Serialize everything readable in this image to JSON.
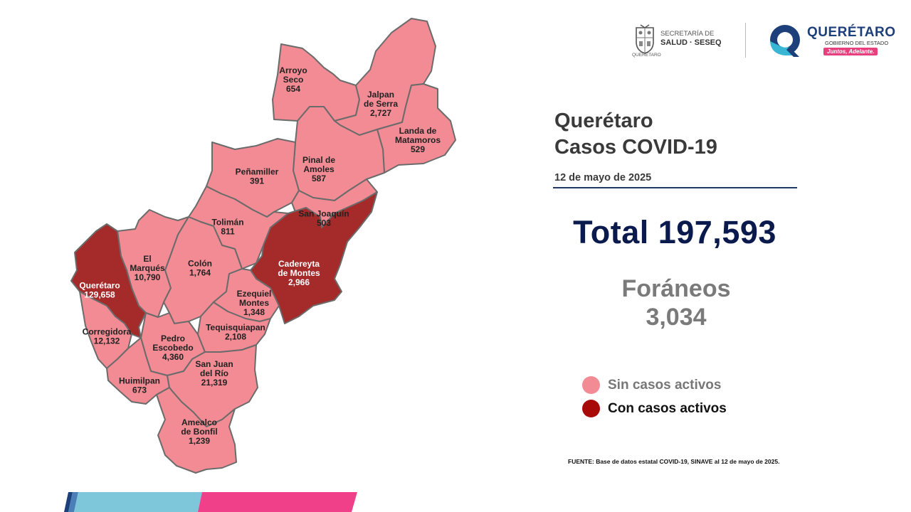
{
  "header": {
    "salud_line1": "SECRETARÍA DE",
    "salud_line2": "SALUD · SESEQ",
    "salud_sub": "QUERÉTARO",
    "state_name": "QUERÉTARO",
    "state_sub": "GOBIERNO DEL ESTADO",
    "slogan": "Juntos, Adelante."
  },
  "title": {
    "line1": "Querétaro",
    "line2": "Casos COVID-19",
    "date": "12 de mayo de 2025"
  },
  "totals": {
    "total_label": "Total 197,593",
    "foraneos_label": "Foráneos",
    "foraneos_value": "3,034"
  },
  "legend": [
    {
      "label": "Sin casos activos",
      "color": "#f28b93"
    },
    {
      "label": "Con casos activos",
      "color": "#a80a0a"
    }
  ],
  "colors": {
    "inactive": "#f28b93",
    "active": "#a52a2a",
    "border": "#6b6b6b"
  },
  "municipalities": [
    {
      "id": "arroyo-seco",
      "name_lines": [
        "Arroyo",
        "Seco"
      ],
      "cases": "654",
      "active": false
    },
    {
      "id": "jalpan-de-serra",
      "name_lines": [
        "Jalpan",
        "de Serra"
      ],
      "cases": "2,727",
      "active": false
    },
    {
      "id": "landa-de-matamoros",
      "name_lines": [
        "Landa de",
        "Matamoros"
      ],
      "cases": "529",
      "active": false
    },
    {
      "id": "pinal-de-amoles",
      "name_lines": [
        "Pinal de",
        "Amoles"
      ],
      "cases": "587",
      "active": false
    },
    {
      "id": "penamiller",
      "name_lines": [
        "Peñamiller"
      ],
      "cases": "391",
      "active": false
    },
    {
      "id": "san-joaquin",
      "name_lines": [
        "San Joaquín"
      ],
      "cases": "503",
      "active": false
    },
    {
      "id": "toliman",
      "name_lines": [
        "Tolimán"
      ],
      "cases": "811",
      "active": false
    },
    {
      "id": "cadereyta-de-montes",
      "name_lines": [
        "Cadereyta",
        "de Montes"
      ],
      "cases": "2,966",
      "active": true
    },
    {
      "id": "el-marques",
      "name_lines": [
        "El",
        "Marqués"
      ],
      "cases": "10,790",
      "active": false
    },
    {
      "id": "colon",
      "name_lines": [
        "Colón"
      ],
      "cases": "1,764",
      "active": false
    },
    {
      "id": "queretaro",
      "name_lines": [
        "Querétaro"
      ],
      "cases": "129,658",
      "active": true
    },
    {
      "id": "ezequiel-montes",
      "name_lines": [
        "Ezequiel",
        "Montes"
      ],
      "cases": "1,348",
      "active": false
    },
    {
      "id": "corregidora",
      "name_lines": [
        "Corregidora"
      ],
      "cases": "12,132",
      "active": false
    },
    {
      "id": "pedro-escobedo",
      "name_lines": [
        "Pedro",
        "Escobedo"
      ],
      "cases": "4,360",
      "active": false
    },
    {
      "id": "tequisquiapan",
      "name_lines": [
        "Tequisquiapan"
      ],
      "cases": "2,108",
      "active": false
    },
    {
      "id": "huimilpan",
      "name_lines": [
        "Huimilpan"
      ],
      "cases": "673",
      "active": false
    },
    {
      "id": "san-juan-del-rio",
      "name_lines": [
        "San Juan",
        "del Río"
      ],
      "cases": "21,319",
      "active": false
    },
    {
      "id": "amealco-de-bonfil",
      "name_lines": [
        "Amealco",
        "de Bonfil"
      ],
      "cases": "1,239",
      "active": false
    }
  ],
  "source": "FUENTE: Base de datos estatal  COVID-19,  SINAVE  al 12 de mayo de 2025."
}
